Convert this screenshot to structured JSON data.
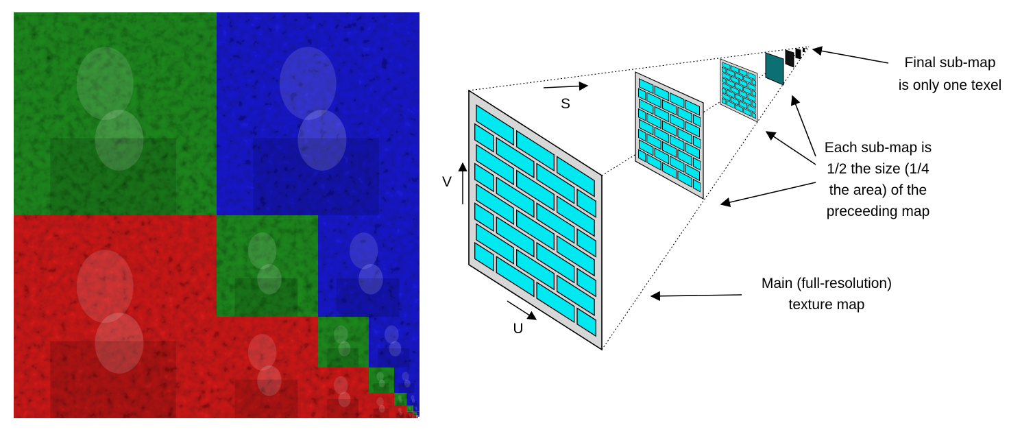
{
  "figure": {
    "left_panel": {
      "channel_colors": {
        "green": "#1f8a1f",
        "blue": "#1a1ad0",
        "red": "#d01a1a"
      }
    },
    "right_panel": {
      "brick_color": "#00e8f0",
      "mortar_color": "#d7d7d7",
      "axes": {
        "s": "S",
        "v": "V",
        "u": "U"
      },
      "annotations": {
        "final_submap": [
          "Final sub-map",
          "is only one texel"
        ],
        "each_submap": [
          "Each sub-map is",
          "1/2 the size (1/4",
          "the area) of the",
          "preceeding map"
        ],
        "main_map": [
          "Main (full-resolution)",
          "texture map"
        ]
      }
    }
  }
}
